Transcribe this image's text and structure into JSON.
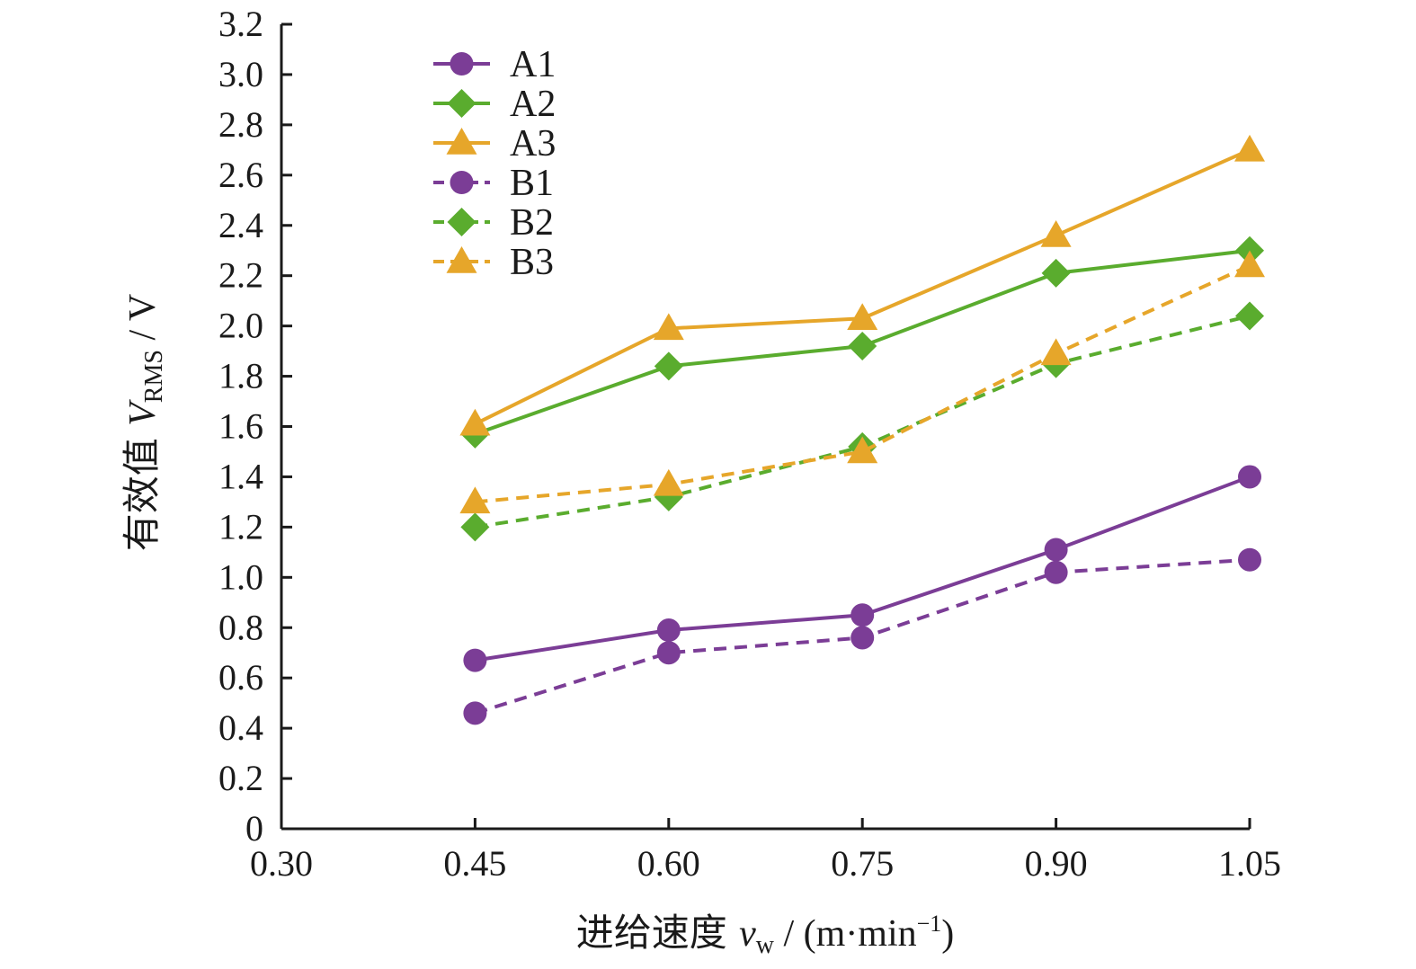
{
  "chart_data": {
    "type": "line",
    "xlabel_text": "进给速度",
    "xlabel_var": "v",
    "xlabel_sub": "w",
    "xlabel_unit_pre": " / (m·min",
    "xlabel_unit_sup": "−1",
    "xlabel_unit_post": ")",
    "ylabel_text": "有效值",
    "ylabel_var": "V",
    "ylabel_sub": "RMS",
    "ylabel_unit": " / V",
    "xlim": [
      0.3,
      1.05
    ],
    "ylim": [
      0,
      3.2
    ],
    "x_ticks": [
      "0.30",
      "0.45",
      "0.60",
      "0.75",
      "0.90",
      "1.05"
    ],
    "y_ticks": [
      "0",
      "0.2",
      "0.4",
      "0.6",
      "0.8",
      "1.0",
      "1.2",
      "1.4",
      "1.6",
      "1.8",
      "2.0",
      "2.2",
      "2.4",
      "2.6",
      "2.8",
      "3.0",
      "3.2"
    ],
    "x": [
      0.45,
      0.6,
      0.75,
      0.9,
      1.05
    ],
    "legend_position": "top-left",
    "series": [
      {
        "name": "A1",
        "values": [
          0.67,
          0.79,
          0.85,
          1.11,
          1.4
        ],
        "color": "#7b3d96",
        "marker": "circle",
        "dash": "solid"
      },
      {
        "name": "A2",
        "values": [
          1.57,
          1.84,
          1.92,
          2.21,
          2.3
        ],
        "color": "#5aac2e",
        "marker": "diamond",
        "dash": "solid"
      },
      {
        "name": "A3",
        "values": [
          1.61,
          1.99,
          2.03,
          2.36,
          2.7
        ],
        "color": "#e6a62a",
        "marker": "triangle",
        "dash": "solid"
      },
      {
        "name": "B1",
        "values": [
          0.46,
          0.7,
          0.76,
          1.02,
          1.07
        ],
        "color": "#7b3d96",
        "marker": "circle",
        "dash": "dashed"
      },
      {
        "name": "B2",
        "values": [
          1.2,
          1.32,
          1.52,
          1.85,
          2.04
        ],
        "color": "#5aac2e",
        "marker": "diamond",
        "dash": "dashed"
      },
      {
        "name": "B3",
        "values": [
          1.3,
          1.37,
          1.5,
          1.89,
          2.24
        ],
        "color": "#e6a62a",
        "marker": "triangle",
        "dash": "dashed"
      }
    ]
  }
}
